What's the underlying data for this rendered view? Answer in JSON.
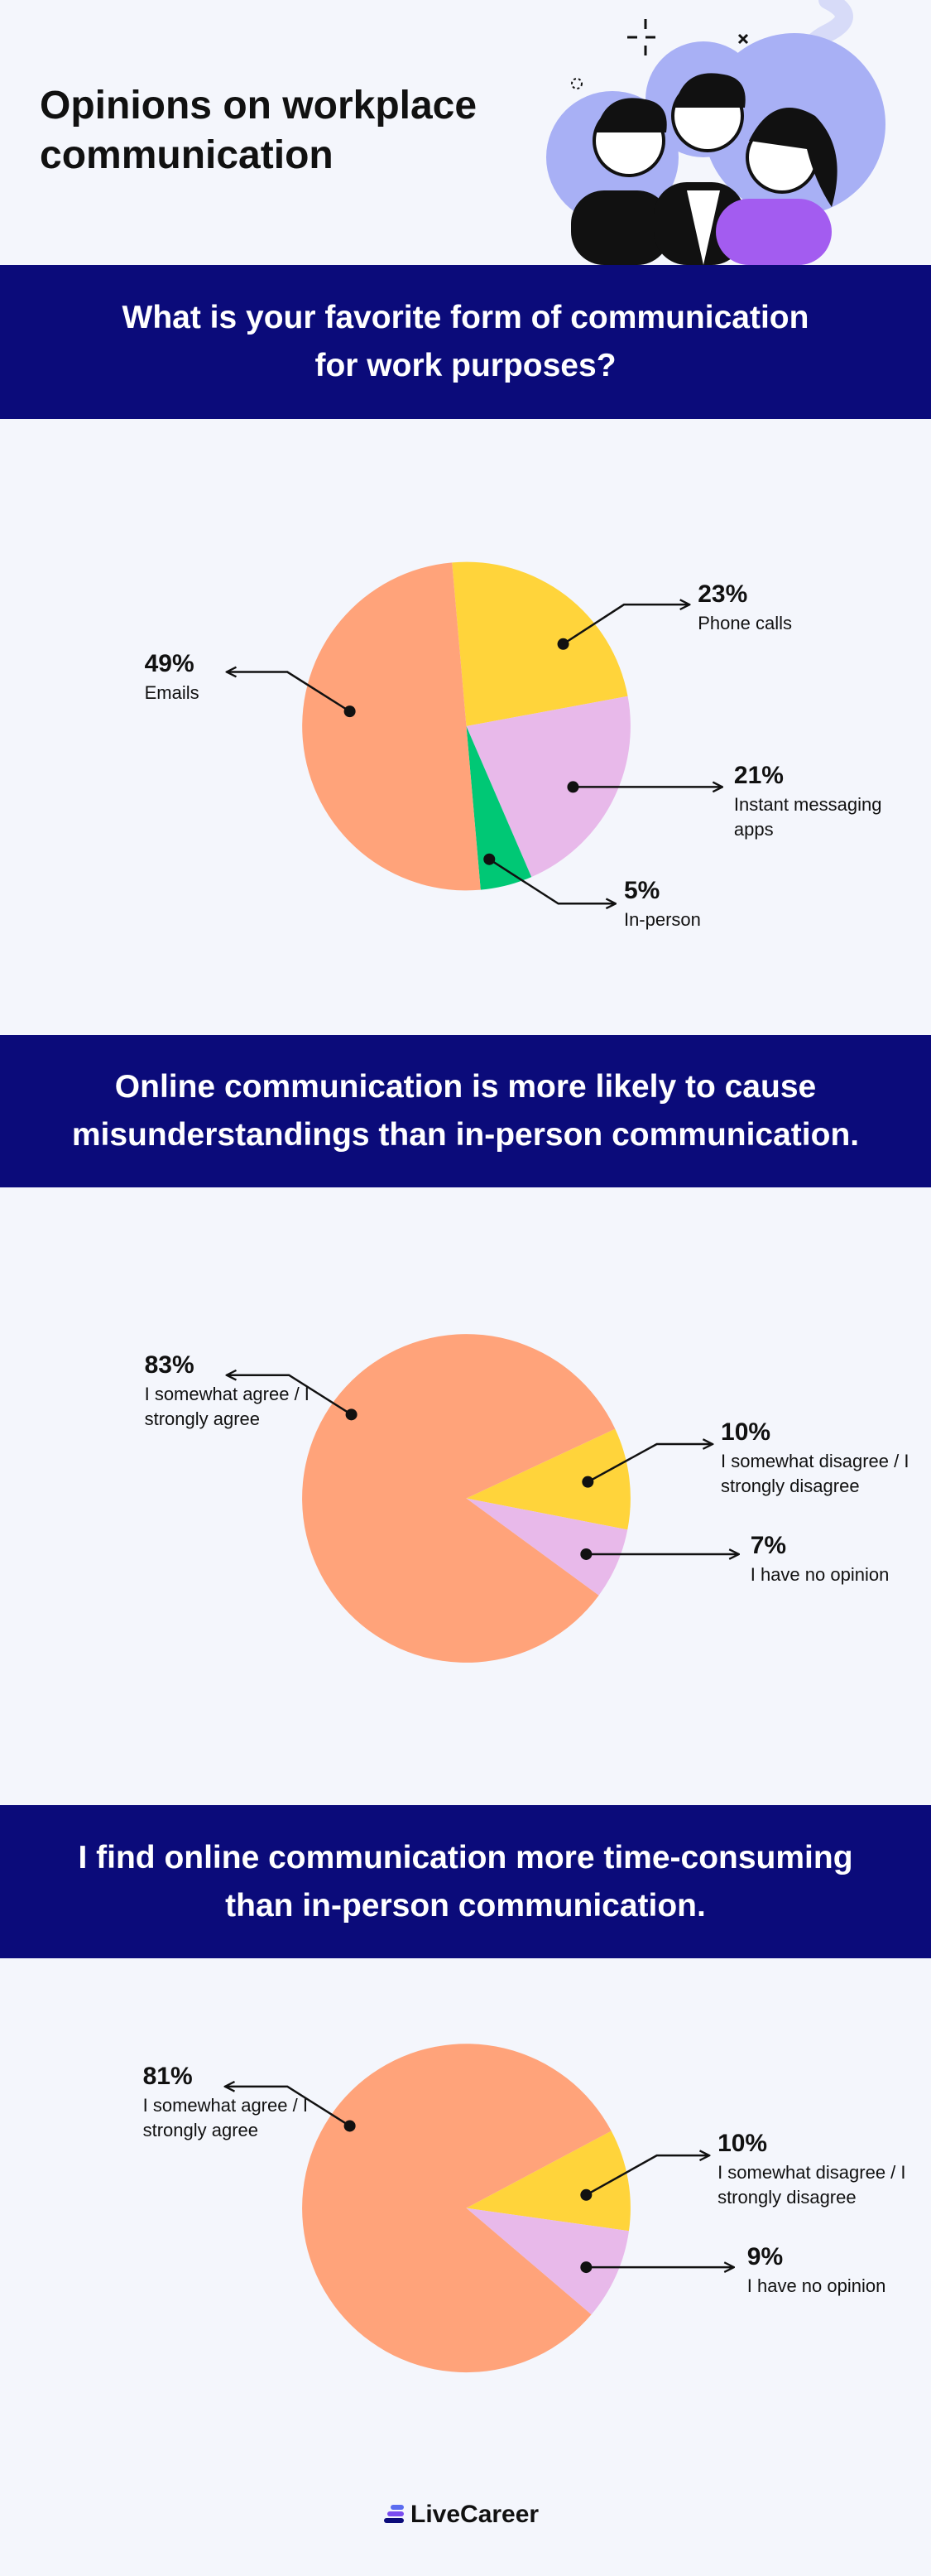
{
  "title": "Opinions on workplace communication",
  "brand": "LiveCareer",
  "chart_data": [
    {
      "type": "pie",
      "title": "What is your favorite form of communication for work purposes?",
      "categories": [
        "Phone calls",
        "Instant messaging apps",
        "In-person",
        "Emails"
      ],
      "values": [
        23,
        21,
        5,
        49
      ],
      "value_labels": [
        "23%",
        "21%",
        "5%",
        "49%"
      ],
      "colors": [
        "#FFD43B",
        "#E8B9EA",
        "#00C875",
        "#FFA37A"
      ]
    },
    {
      "type": "pie",
      "title": "Online communication is more likely to cause misunderstandings than in-person communication.",
      "categories": [
        "I somewhat disagree / I strongly disagree",
        "I have no opinion",
        "I somewhat agree / I strongly agree"
      ],
      "values": [
        10,
        7,
        83
      ],
      "value_labels": [
        "10%",
        "7%",
        "83%"
      ],
      "colors": [
        "#FFD43B",
        "#E8B9EA",
        "#FFA37A"
      ]
    },
    {
      "type": "pie",
      "title": "I find online communication more time-consuming than in-person communication.",
      "categories": [
        "I somewhat disagree / I strongly disagree",
        "I have no opinion",
        "I somewhat agree / I strongly agree"
      ],
      "values": [
        10,
        9,
        81
      ],
      "value_labels": [
        "10%",
        "9%",
        "81%"
      ],
      "colors": [
        "#FFD43B",
        "#E8B9EA",
        "#FFA37A"
      ]
    }
  ]
}
